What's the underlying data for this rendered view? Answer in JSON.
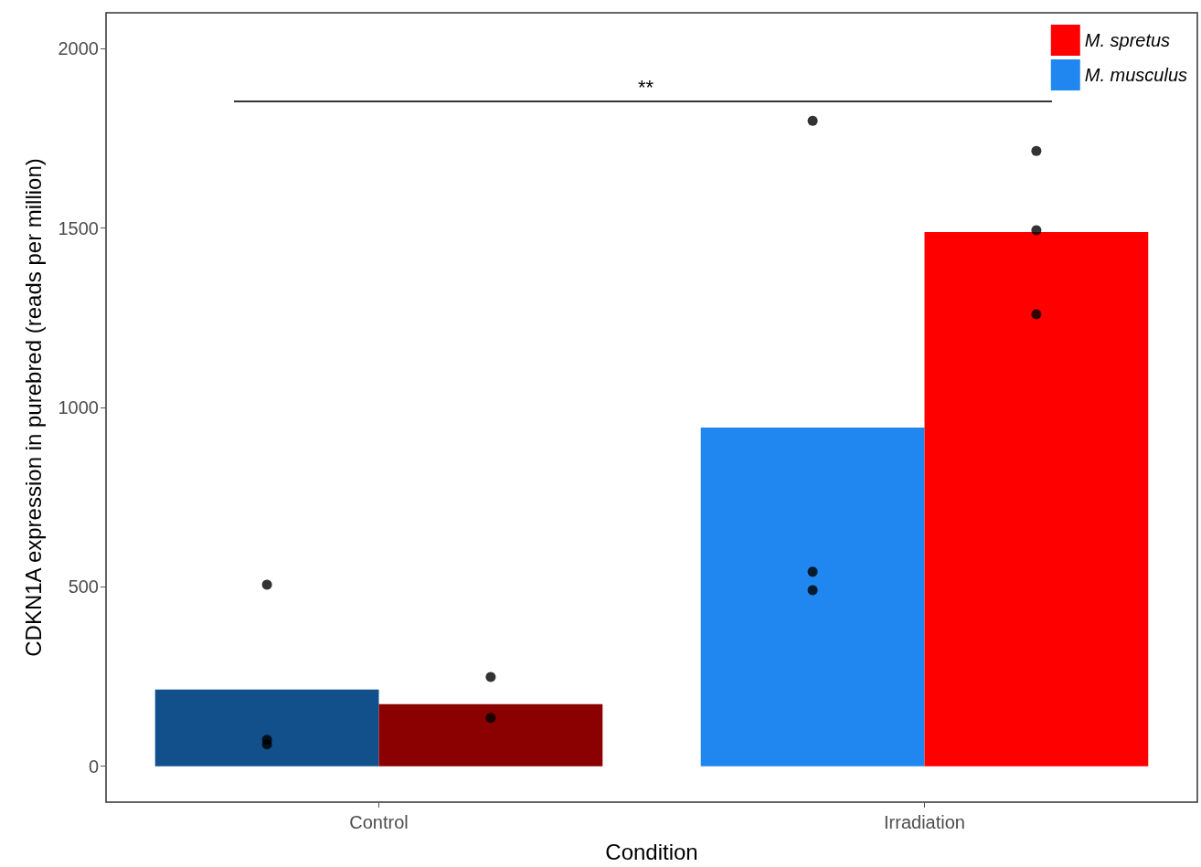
{
  "chart_data": {
    "type": "bar",
    "xlabel": "Condition",
    "ylabel": "CDKN1A expression in purebred (reads per million)",
    "categories": [
      "Control",
      "Irradiation"
    ],
    "series": [
      {
        "name": "M. musculus",
        "color": "#1f87ef",
        "colors": [
          "#11508a",
          "#1f87ef"
        ],
        "values": [
          214,
          944
        ]
      },
      {
        "name": "M. spretus",
        "color": "#ff0000",
        "colors": [
          "#8b0000",
          "#ff0000"
        ],
        "values": [
          173,
          1489
        ]
      },
      {
        "type": "scatter",
        "color": "#000000",
        "x": [
          "Control",
          "Control",
          "Control",
          "Irradiation",
          "Irradiation",
          "Irradiation"
        ],
        "values": [
          506,
          74,
          61,
          1799,
          542,
          491
        ]
      },
      {
        "type": "scatter",
        "color": "#000000",
        "x": [
          "Control",
          "Control",
          "Control",
          "Irradiation",
          "Irradiation",
          "Irradiation"
        ],
        "values": [
          249,
          null,
          135,
          1715,
          1494,
          1260
        ]
      }
    ],
    "ylim": [
      -100,
      2100
    ],
    "yticks": [
      0,
      500,
      1000,
      1500,
      2000
    ],
    "grid": false,
    "legend": "top right",
    "marker": "circle",
    "annotations": [
      "**"
    ]
  }
}
